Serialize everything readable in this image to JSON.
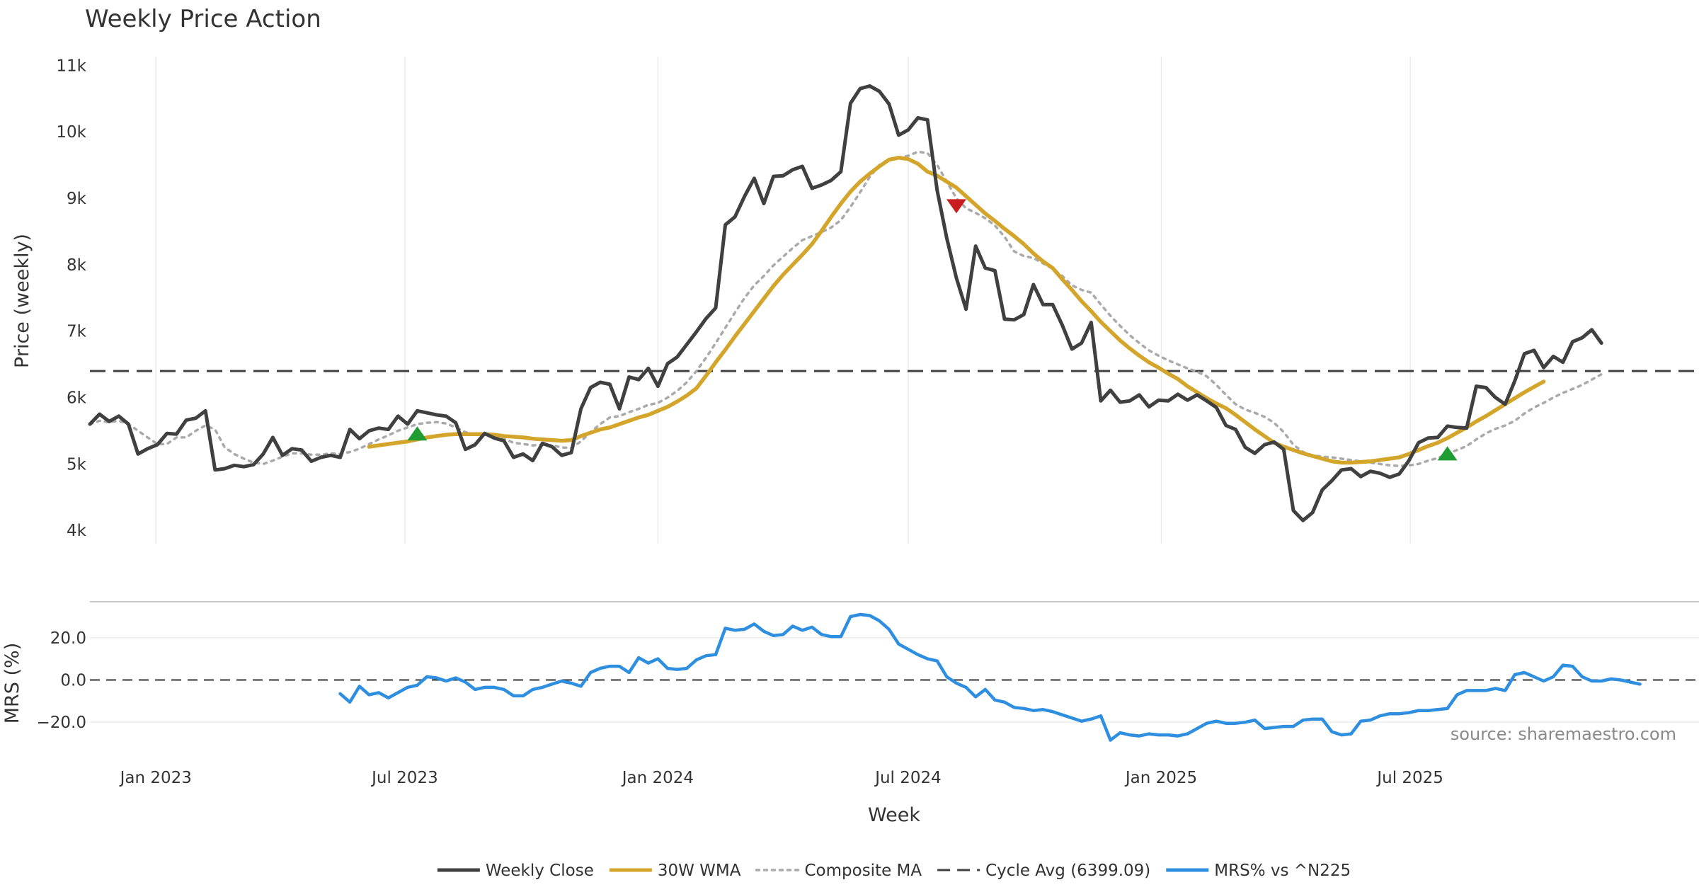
{
  "chart_data": {
    "type": "line",
    "title": "Weekly Price Action",
    "source": "source: sharemaestro.com",
    "xlabel": "Week",
    "x_start": "2022-11-14",
    "x_step_days": 7,
    "x_ticks": [
      {
        "date": "2023-01-01",
        "label": "Jan 2023"
      },
      {
        "date": "2023-07-01",
        "label": "Jul 2023"
      },
      {
        "date": "2024-01-01",
        "label": "Jan 2024"
      },
      {
        "date": "2024-07-01",
        "label": "Jul 2024"
      },
      {
        "date": "2025-01-01",
        "label": "Jan 2025"
      },
      {
        "date": "2025-07-01",
        "label": "Jul 2025"
      }
    ],
    "price_panel": {
      "ylabel": "Price (weekly)",
      "ylim": [
        3800,
        11100
      ],
      "y_ticks": [
        {
          "v": 4000,
          "label": "4k"
        },
        {
          "v": 5000,
          "label": "5k"
        },
        {
          "v": 6000,
          "label": "6k"
        },
        {
          "v": 7000,
          "label": "7k"
        },
        {
          "v": 8000,
          "label": "8k"
        },
        {
          "v": 9000,
          "label": "9k"
        },
        {
          "v": 10000,
          "label": "10k"
        },
        {
          "v": 11000,
          "label": "11k"
        }
      ],
      "cycle_avg": 6399.09,
      "series": [
        {
          "name": "Weekly Close",
          "color": "#404040",
          "style": "solid",
          "start_index": 0,
          "values": [
            5600,
            5750,
            5640,
            5720,
            5600,
            5150,
            5230,
            5290,
            5460,
            5450,
            5660,
            5690,
            5800,
            4910,
            4930,
            4980,
            4960,
            4990,
            5150,
            5400,
            5130,
            5230,
            5210,
            5040,
            5100,
            5130,
            5100,
            5520,
            5380,
            5500,
            5540,
            5520,
            5720,
            5600,
            5800,
            5770,
            5740,
            5720,
            5620,
            5220,
            5290,
            5460,
            5390,
            5350,
            5100,
            5150,
            5050,
            5310,
            5260,
            5130,
            5170,
            5830,
            6150,
            6230,
            6200,
            5830,
            6310,
            6270,
            6440,
            6170,
            6510,
            6610,
            6800,
            6990,
            7190,
            7350,
            8600,
            8720,
            9030,
            9300,
            8920,
            9330,
            9340,
            9430,
            9480,
            9150,
            9200,
            9270,
            9400,
            10430,
            10650,
            10690,
            10610,
            10420,
            9950,
            10030,
            10210,
            10180,
            9120,
            8400,
            7800,
            7330,
            8280,
            7950,
            7910,
            7180,
            7170,
            7250,
            7700,
            7400,
            7400,
            7090,
            6730,
            6820,
            7130,
            5950,
            6110,
            5930,
            5950,
            6040,
            5860,
            5960,
            5950,
            6050,
            5960,
            6040,
            5950,
            5850,
            5580,
            5520,
            5250,
            5160,
            5290,
            5330,
            5220,
            4300,
            4150,
            4270,
            4610,
            4750,
            4910,
            4930,
            4810,
            4890,
            4860,
            4800,
            4850,
            5050,
            5320,
            5390,
            5400,
            5570,
            5550,
            5540,
            6170,
            6150,
            6000,
            5900,
            6250,
            6660,
            6710,
            6450,
            6620,
            6530,
            6840,
            6900,
            7020,
            6820
          ]
        },
        {
          "name": "30W WMA",
          "color": "#D4A52B",
          "style": "solid",
          "start_index": 29,
          "values": [
            5260,
            5280,
            5300,
            5320,
            5340,
            5370,
            5400,
            5420,
            5440,
            5450,
            5450,
            5450,
            5450,
            5440,
            5420,
            5410,
            5400,
            5380,
            5370,
            5360,
            5350,
            5360,
            5420,
            5470,
            5520,
            5550,
            5600,
            5650,
            5700,
            5740,
            5800,
            5860,
            5940,
            6030,
            6140,
            6330,
            6530,
            6720,
            6920,
            7110,
            7300,
            7490,
            7680,
            7850,
            8000,
            8150,
            8310,
            8510,
            8720,
            8920,
            9100,
            9250,
            9370,
            9480,
            9580,
            9610,
            9590,
            9520,
            9400,
            9340,
            9250,
            9160,
            9030,
            8900,
            8770,
            8660,
            8540,
            8430,
            8310,
            8170,
            8050,
            7950,
            7780,
            7620,
            7450,
            7300,
            7140,
            7000,
            6860,
            6740,
            6630,
            6530,
            6450,
            6360,
            6280,
            6170,
            6080,
            5990,
            5910,
            5840,
            5740,
            5630,
            5520,
            5420,
            5320,
            5260,
            5210,
            5160,
            5120,
            5080,
            5040,
            5020,
            5020,
            5030,
            5040,
            5060,
            5080,
            5100,
            5150,
            5210,
            5270,
            5320,
            5390,
            5470,
            5550,
            5640,
            5720,
            5810,
            5900,
            5990,
            6080,
            6160,
            6240
          ]
        },
        {
          "name": "Composite MA",
          "color": "#AAAAAA",
          "style": "dotted",
          "start_index": 0,
          "values": [
            5600,
            5650,
            5630,
            5650,
            5600,
            5500,
            5400,
            5300,
            5300,
            5400,
            5400,
            5500,
            5580,
            5520,
            5250,
            5150,
            5080,
            5020,
            5000,
            5050,
            5110,
            5160,
            5160,
            5140,
            5140,
            5160,
            5150,
            5180,
            5230,
            5300,
            5370,
            5430,
            5500,
            5550,
            5600,
            5620,
            5630,
            5610,
            5550,
            5480,
            5440,
            5440,
            5420,
            5380,
            5320,
            5300,
            5280,
            5290,
            5280,
            5250,
            5240,
            5340,
            5480,
            5600,
            5700,
            5720,
            5780,
            5830,
            5890,
            5920,
            6000,
            6100,
            6230,
            6400,
            6600,
            6820,
            7050,
            7280,
            7500,
            7690,
            7830,
            7990,
            8120,
            8250,
            8370,
            8430,
            8490,
            8560,
            8670,
            8870,
            9090,
            9320,
            9500,
            9590,
            9610,
            9640,
            9700,
            9680,
            9500,
            9250,
            9000,
            8850,
            8780,
            8700,
            8590,
            8420,
            8200,
            8130,
            8100,
            8020,
            7940,
            7830,
            7690,
            7620,
            7580,
            7400,
            7230,
            7080,
            6940,
            6820,
            6710,
            6630,
            6560,
            6500,
            6440,
            6390,
            6320,
            6190,
            6040,
            5900,
            5820,
            5770,
            5710,
            5620,
            5480,
            5290,
            5180,
            5130,
            5110,
            5100,
            5080,
            5060,
            5040,
            5020,
            5000,
            4980,
            4970,
            4980,
            5000,
            5050,
            5090,
            5150,
            5210,
            5270,
            5370,
            5460,
            5530,
            5580,
            5650,
            5760,
            5850,
            5920,
            6000,
            6070,
            6130,
            6190,
            6270,
            6350
          ]
        }
      ],
      "markers": [
        {
          "type": "buy",
          "week_index": 34,
          "value": 5460,
          "color": "#1E9E32"
        },
        {
          "type": "sell",
          "week_index": 90,
          "value": 8880,
          "color": "#C81E1E"
        },
        {
          "type": "buy",
          "week_index": 141,
          "value": 5160,
          "color": "#1E9E32"
        }
      ]
    },
    "mrs_panel": {
      "ylabel": "MRS (%)",
      "ylim": [
        -30,
        33
      ],
      "y_ticks": [
        {
          "v": 20,
          "label": "20.0"
        },
        {
          "v": 0,
          "label": "0.0"
        },
        {
          "v": -20,
          "label": "−20.0"
        }
      ],
      "series": [
        {
          "name": "MRS% vs ^N225",
          "color": "#2E8FE0",
          "style": "solid",
          "start_index": 26,
          "values": [
            -6.5,
            -10.5,
            -3,
            -7,
            -6,
            -8.5,
            -6,
            -3.5,
            -2.5,
            1.5,
            1,
            -0.5,
            1,
            -1,
            -4.5,
            -3.5,
            -3.5,
            -4.5,
            -7.5,
            -7.5,
            -4.5,
            -3.5,
            -2,
            -0.5,
            -1.5,
            -3,
            3.5,
            5.5,
            6.5,
            6.5,
            3.5,
            10.5,
            8,
            10,
            5.5,
            5,
            5.5,
            9.5,
            11.5,
            12,
            24.5,
            23.5,
            24,
            26.5,
            23,
            21,
            21.5,
            25.5,
            23.5,
            25,
            21.5,
            20.5,
            20.5,
            30,
            31,
            30.5,
            28,
            24,
            17,
            14.5,
            12,
            10,
            9,
            1.5,
            -1.5,
            -3.5,
            -8,
            -4.5,
            -9.5,
            -10.5,
            -13,
            -13.5,
            -14.5,
            -14,
            -15,
            -16.5,
            -18,
            -19.5,
            -18.5,
            -17,
            -28.5,
            -25,
            -26,
            -26.5,
            -25.5,
            -26,
            -26,
            -26.5,
            -25.5,
            -23,
            -20.5,
            -19.5,
            -20.5,
            -20.5,
            -20,
            -19,
            -23,
            -22.5,
            -22,
            -22,
            -19,
            -18.5,
            -18.5,
            -24.5,
            -26,
            -25.5,
            -19.5,
            -19,
            -17,
            -16,
            -16,
            -15.5,
            -14.5,
            -14.5,
            -14,
            -13.5,
            -7,
            -5,
            -5,
            -5,
            -4,
            -5,
            2.5,
            3.5,
            1.5,
            -0.5,
            1.5,
            7,
            6.5,
            1.5,
            -0.5,
            -0.5,
            0.5,
            0,
            -1,
            -2
          ]
        }
      ]
    },
    "legend": [
      {
        "label": "Weekly Close",
        "color": "#404040",
        "style": "solid"
      },
      {
        "label": "30W WMA",
        "color": "#D4A52B",
        "style": "solid"
      },
      {
        "label": "Composite MA",
        "color": "#AAAAAA",
        "style": "dotted"
      },
      {
        "label": "Cycle Avg (6399.09)",
        "color": "#404040",
        "style": "dashed"
      },
      {
        "label": "MRS% vs ^N225",
        "color": "#2E8FE0",
        "style": "solid"
      }
    ]
  }
}
